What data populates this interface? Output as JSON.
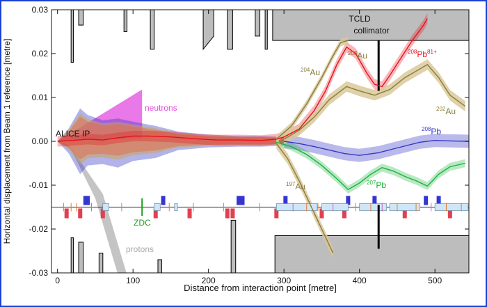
{
  "chart_data": {
    "type": "line",
    "title": "",
    "xlabel": "Distance from interaction point [metre]",
    "ylabel": "Horizontal displacement from Beam 1 reference [metre]",
    "xlim": [
      -8,
      545
    ],
    "ylim": [
      -0.03,
      0.03
    ],
    "x_ticks": [
      0,
      100,
      200,
      300,
      400,
      500
    ],
    "y_ticks": [
      -0.03,
      -0.02,
      -0.01,
      0.0,
      0.01,
      0.02,
      0.03
    ],
    "y_tick_labels": [
      "-0.03",
      "-0.02",
      "-0.01",
      "0.00",
      "0.01",
      "0.02",
      "0.03"
    ],
    "grid": false,
    "legend": "none",
    "beamline_y": -0.015,
    "colors": {
      "frame": "#1a3fd1",
      "pb208_81": "#e8101a",
      "pb208": "#3636c8",
      "pb207": "#18b23a",
      "au": "#8a7a3a",
      "au_band": "#d9c99a",
      "neutrons": "#e24be0",
      "protons": "#b0b0b0",
      "aperture": "#bdbdbd",
      "zdc": "#1aa01a"
    },
    "annotations": {
      "alice_ip": "ALICE IP",
      "tcld_line1": "TCLD",
      "tcld_line2": "collimator",
      "neutrons": "neutrons",
      "protons": "protons",
      "zdc": "ZDC",
      "pb208_81": {
        "mass": "208",
        "element": "Pb",
        "charge": "81+"
      },
      "pb208": {
        "mass": "208",
        "element": "Pb"
      },
      "pb207": {
        "mass": "207",
        "element": "Pb"
      },
      "au204": {
        "mass": "204",
        "element": "Au"
      },
      "au203": {
        "mass": "203",
        "element": "Au"
      },
      "au202": {
        "mass": "202",
        "element": "Au"
      },
      "au197": {
        "mass": "197",
        "element": "Au"
      }
    },
    "series": [
      {
        "name": "208Pb81+",
        "x": [
          0,
          20,
          40,
          60,
          80,
          100,
          120,
          150,
          180,
          210,
          240,
          270,
          290,
          300,
          320,
          340,
          355,
          370,
          383,
          395,
          410,
          420,
          430,
          440,
          455,
          470,
          485,
          490
        ],
        "y": [
          0.0,
          0.0002,
          0.0005,
          0.0003,
          0.0008,
          0.0012,
          0.0012,
          0.001,
          0.0006,
          0.0003,
          0.0003,
          0.0002,
          0.0005,
          0.001,
          0.0028,
          0.007,
          0.0115,
          0.0175,
          0.0215,
          0.02,
          0.0155,
          0.013,
          0.0125,
          0.015,
          0.019,
          0.023,
          0.0265,
          0.028
        ],
        "band": 0.0012
      },
      {
        "name": "208Pb",
        "x": [
          300,
          320,
          340,
          360,
          380,
          400,
          425,
          450,
          480,
          500,
          520,
          545
        ],
        "y": [
          0.0,
          -0.0005,
          -0.0012,
          -0.002,
          -0.0028,
          -0.0032,
          -0.0026,
          -0.0015,
          -0.0002,
          0.0002,
          0.0001,
          0.0
        ],
        "band": 0.0015
      },
      {
        "name": "207Pb",
        "x": [
          290,
          310,
          330,
          350,
          370,
          385,
          400,
          415,
          430,
          445,
          460,
          475,
          490,
          505,
          520,
          540
        ],
        "y": [
          -0.0002,
          -0.0012,
          -0.003,
          -0.0055,
          -0.0085,
          -0.011,
          -0.0095,
          -0.0075,
          -0.006,
          -0.0068,
          -0.008,
          -0.009,
          -0.0102,
          -0.0075,
          -0.0058,
          -0.005
        ],
        "band": 0.0009
      },
      {
        "name": "204Au",
        "x": [
          290,
          310,
          330,
          350,
          365,
          375,
          385
        ],
        "y": [
          0.0005,
          0.0035,
          0.0085,
          0.0145,
          0.0195,
          0.0225,
          0.023
        ],
        "band": 0.0008
      },
      {
        "name": "203Au",
        "x": [
          300,
          320,
          340,
          360,
          383,
          400,
          420,
          440,
          460,
          475,
          490,
          505,
          520,
          540
        ],
        "y": [
          0.0005,
          0.0025,
          0.0055,
          0.0095,
          0.0125,
          0.0115,
          0.0105,
          0.0118,
          0.0145,
          0.016,
          0.0175,
          0.0145,
          0.0105,
          0.008
        ],
        "band": 0.0012
      },
      {
        "name": "197Au",
        "x": [
          290,
          305,
          320,
          335,
          350,
          365
        ],
        "y": [
          -0.0005,
          -0.004,
          -0.009,
          -0.0145,
          -0.02,
          -0.0255
        ],
        "band": 0.0012
      }
    ]
  }
}
